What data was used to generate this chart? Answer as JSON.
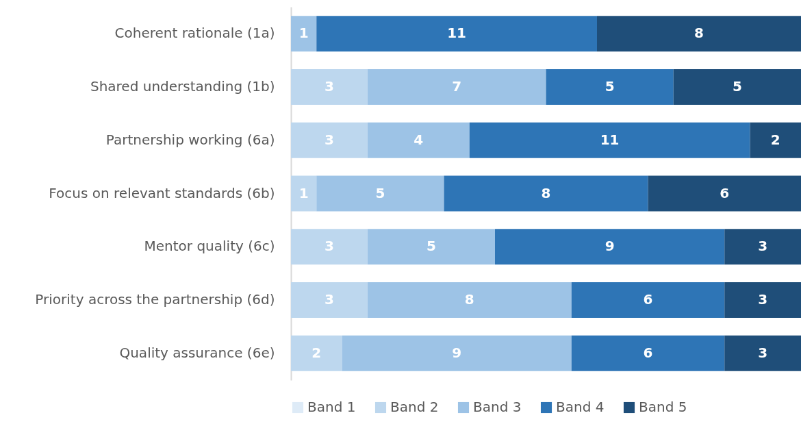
{
  "chart_data": {
    "type": "bar",
    "orientation": "horizontal",
    "stacked": true,
    "categories": [
      "Coherent rationale (1a)",
      "Shared understanding (1b)",
      "Partnership working (6a)",
      "Focus on relevant standards (6b)",
      "Mentor quality (6c)",
      "Priority across the partnership (6d)",
      "Quality assurance (6e)"
    ],
    "series": [
      {
        "name": "Band 1",
        "color": "#deebf7",
        "values": [
          0,
          0,
          0,
          0,
          0,
          0,
          0
        ],
        "value_labels": [
          null,
          null,
          null,
          null,
          null,
          null,
          null
        ]
      },
      {
        "name": "Band 2",
        "color": "#bdd7ee",
        "values": [
          0,
          3,
          3,
          1,
          3,
          3,
          2
        ],
        "value_labels": [
          null,
          "3",
          "3",
          "1",
          "3",
          "3",
          "2"
        ]
      },
      {
        "name": "Band 3",
        "color": "#9dc3e6",
        "values": [
          1,
          7,
          4,
          5,
          5,
          8,
          9
        ],
        "value_labels": [
          "1",
          "7",
          "4",
          "5",
          "5",
          "8",
          "9"
        ]
      },
      {
        "name": "Band 4",
        "color": "#2e75b6",
        "values": [
          11,
          5,
          11,
          8,
          9,
          6,
          6
        ],
        "value_labels": [
          "11",
          "5",
          "11",
          "8",
          "9",
          "6",
          "6"
        ]
      },
      {
        "name": "Band 5",
        "color": "#1f4e79",
        "values": [
          8,
          5,
          2,
          6,
          3,
          3,
          3
        ],
        "value_labels": [
          "8",
          "5",
          "2",
          "6",
          "3",
          "3",
          "3"
        ]
      }
    ],
    "xlim": [
      0,
      20
    ],
    "tick_labels": "y",
    "legend": "bottom"
  }
}
